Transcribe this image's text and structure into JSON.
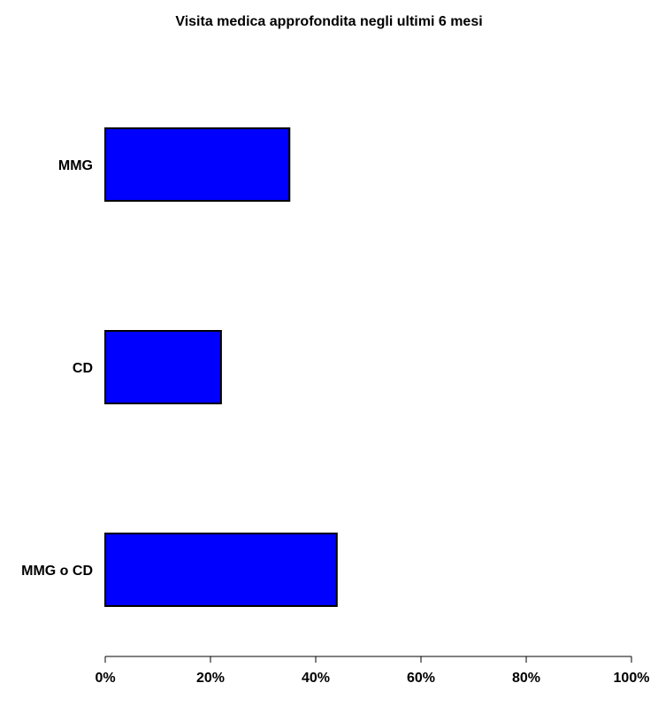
{
  "chart_data": {
    "type": "bar",
    "orientation": "horizontal",
    "title": "Visita medica approfondita negli ultimi 6 mesi",
    "categories": [
      "MMG",
      "CD",
      "MMG o CD"
    ],
    "values": [
      35,
      22,
      44
    ],
    "unit": "%",
    "xlim": [
      0,
      100
    ],
    "xticks": [
      "0%",
      "20%",
      "40%",
      "60%",
      "80%",
      "100%"
    ],
    "xtick_values": [
      0,
      20,
      40,
      60,
      80,
      100
    ],
    "grid": false,
    "legend": "none",
    "bar_color": "#0000ff",
    "bar_edge_color": "#000000"
  }
}
